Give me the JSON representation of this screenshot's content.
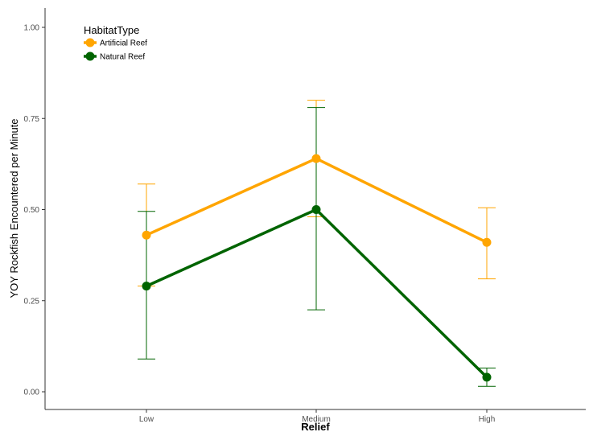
{
  "chart_data": {
    "type": "line",
    "xlabel": "Relief",
    "ylabel": "YOY Rockfish Encountered per Minute",
    "categories": [
      "Low",
      "Medium",
      "High"
    ],
    "ylim": [
      0,
      1.0
    ],
    "yticks": [
      0.0,
      0.25,
      0.5,
      0.75,
      1.0
    ],
    "ytick_labels": [
      "0.00",
      "0.25",
      "0.50",
      "0.75",
      "1.00"
    ],
    "grid": false,
    "legend": {
      "title": "HabitatType",
      "position": "top-left"
    },
    "series": [
      {
        "name": "Artificial Reef",
        "color": "#FFA500",
        "values": [
          0.43,
          0.64,
          0.41
        ],
        "error_low": [
          0.29,
          0.48,
          0.31
        ],
        "error_high": [
          0.57,
          0.8,
          0.505
        ]
      },
      {
        "name": "Natural Reef",
        "color": "#006400",
        "values": [
          0.29,
          0.5,
          0.04
        ],
        "error_low": [
          0.09,
          0.225,
          0.015
        ],
        "error_high": [
          0.495,
          0.78,
          0.065
        ]
      }
    ]
  }
}
